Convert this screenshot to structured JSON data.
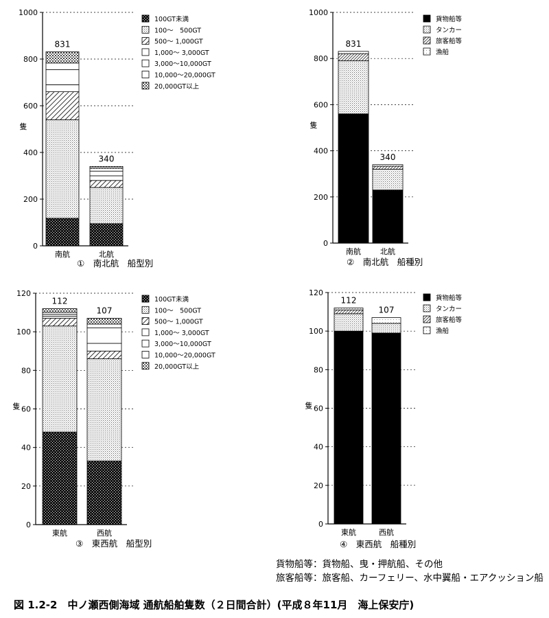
{
  "chart_data": [
    {
      "type": "bar",
      "stacked": true,
      "caption": "①　南北航　船型別",
      "ylabel": "隻",
      "ylim": [
        0,
        1000
      ],
      "yticks": [
        0,
        200,
        400,
        600,
        800,
        1000
      ],
      "grid": "dashed",
      "legend_position": "top-right",
      "categories": [
        "南航",
        "北航"
      ],
      "totals": [
        831,
        340
      ],
      "series": [
        {
          "name": "100GT未満",
          "values": [
            118,
            95
          ]
        },
        {
          "name": "100～　500GT",
          "values": [
            422,
            155
          ]
        },
        {
          "name": "500～ 1,000GT",
          "values": [
            120,
            30
          ]
        },
        {
          "name": "1,000～ 3,000GT",
          "values": [
            30,
            20
          ]
        },
        {
          "name": "3,000～10,000GT",
          "values": [
            65,
            20
          ]
        },
        {
          "name": "10,000～20,000GT",
          "values": [
            28,
            12
          ]
        },
        {
          "name": "20,000GT以上",
          "values": [
            48,
            8
          ]
        }
      ]
    },
    {
      "type": "bar",
      "stacked": true,
      "caption": "②　南北航　船種別",
      "ylabel": "隻",
      "ylim": [
        0,
        1000
      ],
      "yticks": [
        0,
        200,
        400,
        600,
        800,
        1000
      ],
      "grid": "dashed",
      "legend_position": "top-right",
      "categories": [
        "南航",
        "北航"
      ],
      "totals": [
        831,
        340
      ],
      "series": [
        {
          "name": "貨物船等",
          "values": [
            560,
            230
          ]
        },
        {
          "name": "タンカー",
          "values": [
            230,
            90
          ]
        },
        {
          "name": "旅客船等",
          "values": [
            31,
            13
          ]
        },
        {
          "name": "漁船",
          "values": [
            10,
            7
          ]
        }
      ]
    },
    {
      "type": "bar",
      "stacked": true,
      "caption": "③　東西航　船型別",
      "ylabel": "隻",
      "ylim": [
        0,
        120
      ],
      "yticks": [
        0,
        20,
        40,
        60,
        80,
        100,
        120
      ],
      "grid": "dashed",
      "legend_position": "top-right",
      "categories": [
        "東航",
        "西航"
      ],
      "totals": [
        112,
        107
      ],
      "series": [
        {
          "name": "100GT未満",
          "values": [
            48,
            33
          ]
        },
        {
          "name": "100～　500GT",
          "values": [
            55,
            53
          ]
        },
        {
          "name": "500～ 1,000GT",
          "values": [
            4,
            4
          ]
        },
        {
          "name": "1,000～ 3,000GT",
          "values": [
            1,
            4
          ]
        },
        {
          "name": "3,000～10,000GT",
          "values": [
            1,
            8
          ]
        },
        {
          "name": "10,000～20,000GT",
          "values": [
            1,
            2
          ]
        },
        {
          "name": "20,000GT以上",
          "values": [
            2,
            3
          ]
        }
      ]
    },
    {
      "type": "bar",
      "stacked": true,
      "caption": "④　東西航　船種別",
      "ylabel": "隻",
      "ylim": [
        0,
        120
      ],
      "yticks": [
        0,
        20,
        40,
        60,
        80,
        100,
        120
      ],
      "grid": "dashed",
      "legend_position": "top-right",
      "categories": [
        "東航",
        "西航"
      ],
      "totals": [
        112,
        107
      ],
      "series": [
        {
          "name": "貨物船等",
          "values": [
            100,
            99
          ]
        },
        {
          "name": "タンカー",
          "values": [
            9,
            5
          ]
        },
        {
          "name": "旅客船等",
          "values": [
            2,
            0
          ]
        },
        {
          "name": "漁船",
          "values": [
            1,
            3
          ]
        }
      ]
    }
  ],
  "notes": {
    "line1": "貨物船等：貨物船、曳・押航船、その他",
    "line2": "旅客船等：旅客船、カーフェリー、水中翼船・エアクッション船"
  },
  "caption": "図 1.2-2　中ノ瀬西側海域 通航船舶隻数（２日間合計）(平成８年11月　海上保安庁)"
}
